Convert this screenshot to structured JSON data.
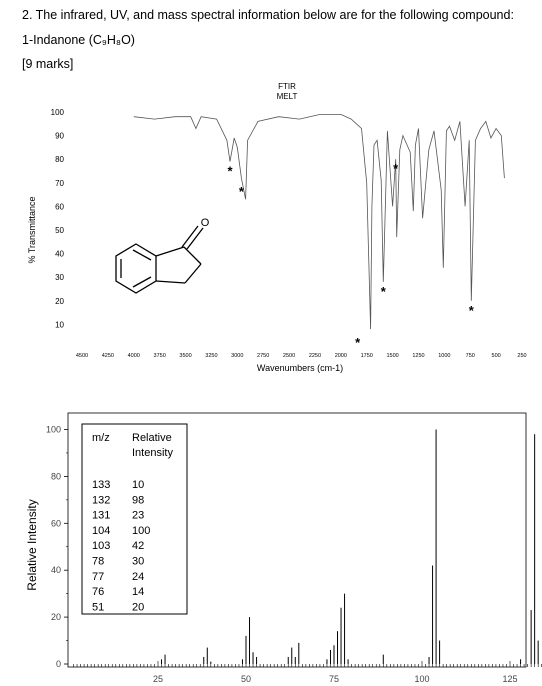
{
  "question": {
    "title": "2. The infrared, UV, and mass spectral information below are for the following compound:",
    "compound": "1-Indanone (C₉H₈O)",
    "marks": "[9 marks]"
  },
  "ir": {
    "label_line1": "FTIR",
    "label_line2": "MELT",
    "y_axis_label": "% Transmittance",
    "x_axis_label": "Wavenumbers (cm-1)",
    "y_ticks": [
      "100",
      "90",
      "80",
      "70",
      "60",
      "50",
      "40",
      "30",
      "20",
      "10"
    ],
    "x_ticks": [
      "4500",
      "4250",
      "4000",
      "3750",
      "3500",
      "3250",
      "3000",
      "2750",
      "2500",
      "2250",
      "2000",
      "1750",
      "1500",
      "1250",
      "1000",
      "750",
      "500",
      "250"
    ],
    "star": "*",
    "oxygen_label": "O"
  },
  "ms": {
    "y_axis_label": "Relative Intensity",
    "y_ticks": [
      "100",
      "80",
      "60",
      "40",
      "20",
      "0"
    ],
    "x_ticks": [
      "25",
      "50",
      "75",
      "100",
      "125"
    ],
    "table": {
      "col1": "m/z",
      "col2_line1": "Relative",
      "col2_line2": "Intensity",
      "rows": [
        {
          "mz": "133",
          "ri": "10"
        },
        {
          "mz": "132",
          "ri": "98"
        },
        {
          "mz": "131",
          "ri": "23"
        },
        {
          "mz": "104",
          "ri": "100"
        },
        {
          "mz": "103",
          "ri": "42"
        },
        {
          "mz": "78",
          "ri": "30"
        },
        {
          "mz": "77",
          "ri": "24"
        },
        {
          "mz": "76",
          "ri": "14"
        },
        {
          "mz": "51",
          "ri": "20"
        }
      ]
    }
  },
  "chart_data": [
    {
      "type": "line",
      "ylabel": "% Transmittance",
      "xlabel": "Wavenumbers (cm-1)",
      "xlim": [
        4500,
        250
      ],
      "ylim": [
        5,
        105
      ],
      "x_reversed": true,
      "x": [
        4000,
        3800,
        3600,
        3450,
        3400,
        3350,
        3200,
        3100,
        3070,
        3030,
        3000,
        2960,
        2920,
        2900,
        2800,
        2600,
        2400,
        2200,
        2000,
        1900,
        1800,
        1750,
        1712,
        1700,
        1680,
        1650,
        1610,
        1590,
        1550,
        1500,
        1470,
        1460,
        1430,
        1400,
        1330,
        1300,
        1280,
        1250,
        1210,
        1150,
        1100,
        1030,
        1010,
        980,
        950,
        900,
        850,
        800,
        760,
        740,
        700,
        650,
        600,
        550,
        500,
        450,
        420
      ],
      "y": [
        98,
        97,
        98,
        98,
        93,
        98,
        97,
        88,
        79,
        89,
        85,
        72,
        63,
        88,
        96,
        98,
        97,
        99,
        99,
        97,
        93,
        70,
        8,
        60,
        86,
        88,
        71,
        28,
        92,
        60,
        80,
        47,
        84,
        90,
        83,
        58,
        86,
        93,
        55,
        84,
        92,
        67,
        34,
        92,
        94,
        88,
        96,
        60,
        88,
        20,
        88,
        93,
        96,
        89,
        93,
        90,
        72
      ],
      "annotations": [
        "*",
        "*",
        "*",
        "*",
        "*",
        "*"
      ]
    },
    {
      "type": "bar",
      "ylabel": "Relative Intensity",
      "xlim": [
        0,
        138
      ],
      "ylim": [
        0,
        100
      ],
      "x": [
        26,
        27,
        38,
        39,
        40,
        49,
        50,
        51,
        52,
        53,
        62,
        63,
        64,
        65,
        73,
        74,
        75,
        76,
        77,
        78,
        79,
        89,
        102,
        103,
        104,
        105,
        128,
        131,
        132,
        133
      ],
      "values": [
        2,
        4,
        3,
        7,
        1,
        2,
        12,
        20,
        5,
        3,
        3,
        7,
        3,
        9,
        2,
        6,
        8,
        14,
        24,
        30,
        2,
        4,
        3,
        42,
        100,
        10,
        2,
        23,
        98,
        10
      ]
    }
  ]
}
